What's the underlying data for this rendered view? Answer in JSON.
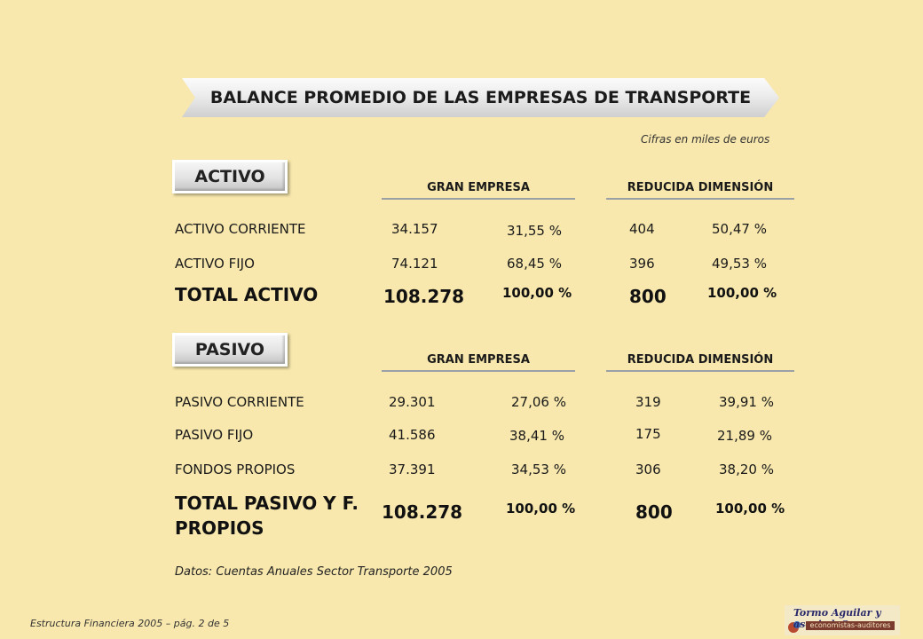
{
  "title": "BALANCE PROMEDIO DE LAS EMPRESAS DE TRANSPORTE",
  "units_note": "Cifras en miles de euros",
  "activo": {
    "section_label": "ACTIVO",
    "col_gran": "GRAN EMPRESA",
    "col_reducida": "REDUCIDA DIMENSIÓN",
    "rows": [
      {
        "label": "ACTIVO  CORRIENTE",
        "gran_val": "34.157",
        "gran_pct": "31,55 %",
        "red_val": "404",
        "red_pct": "50,47 %"
      },
      {
        "label": "ACTIVO  FIJO",
        "gran_val": "74.121",
        "gran_pct": "68,45 %",
        "red_val": "396",
        "red_pct": "49,53 %"
      }
    ],
    "total": {
      "label": "TOTAL ACTIVO",
      "gran_val": "108.278",
      "gran_pct": "100,00 %",
      "red_val": "800",
      "red_pct": "100,00 %"
    }
  },
  "pasivo": {
    "section_label": "PASIVO",
    "col_gran": "GRAN EMPRESA",
    "col_reducida": "REDUCIDA DIMENSIÓN",
    "rows": [
      {
        "label": "PASIVO  CORRIENTE",
        "gran_val": "29.301",
        "gran_pct": "27,06 %",
        "red_val": "319",
        "red_pct": "39,91 %"
      },
      {
        "label": "PASIVO  FIJO",
        "gran_val": "41.586",
        "gran_pct": "38,41 %",
        "red_val": "175",
        "red_pct": "21,89 %"
      },
      {
        "label": "FONDOS PROPIOS",
        "gran_val": "37.391",
        "gran_pct": "34,53 %",
        "red_val": "306",
        "red_pct": "38,20 %"
      }
    ],
    "total": {
      "label_line1": "TOTAL PASIVO Y F.",
      "label_line2": "PROPIOS",
      "gran_val": "108.278",
      "gran_pct": "100,00 %",
      "red_val": "800",
      "red_pct": "100,00 %"
    }
  },
  "source_note": "Datos: Cuentas Anuales Sector Transporte  2005",
  "footer": "Estructura  Financiera 2005 – pág. 2 de 5",
  "logo": {
    "name": "Tormo Aguilar y asociadoS",
    "subtitle": "economistas-auditores"
  }
}
